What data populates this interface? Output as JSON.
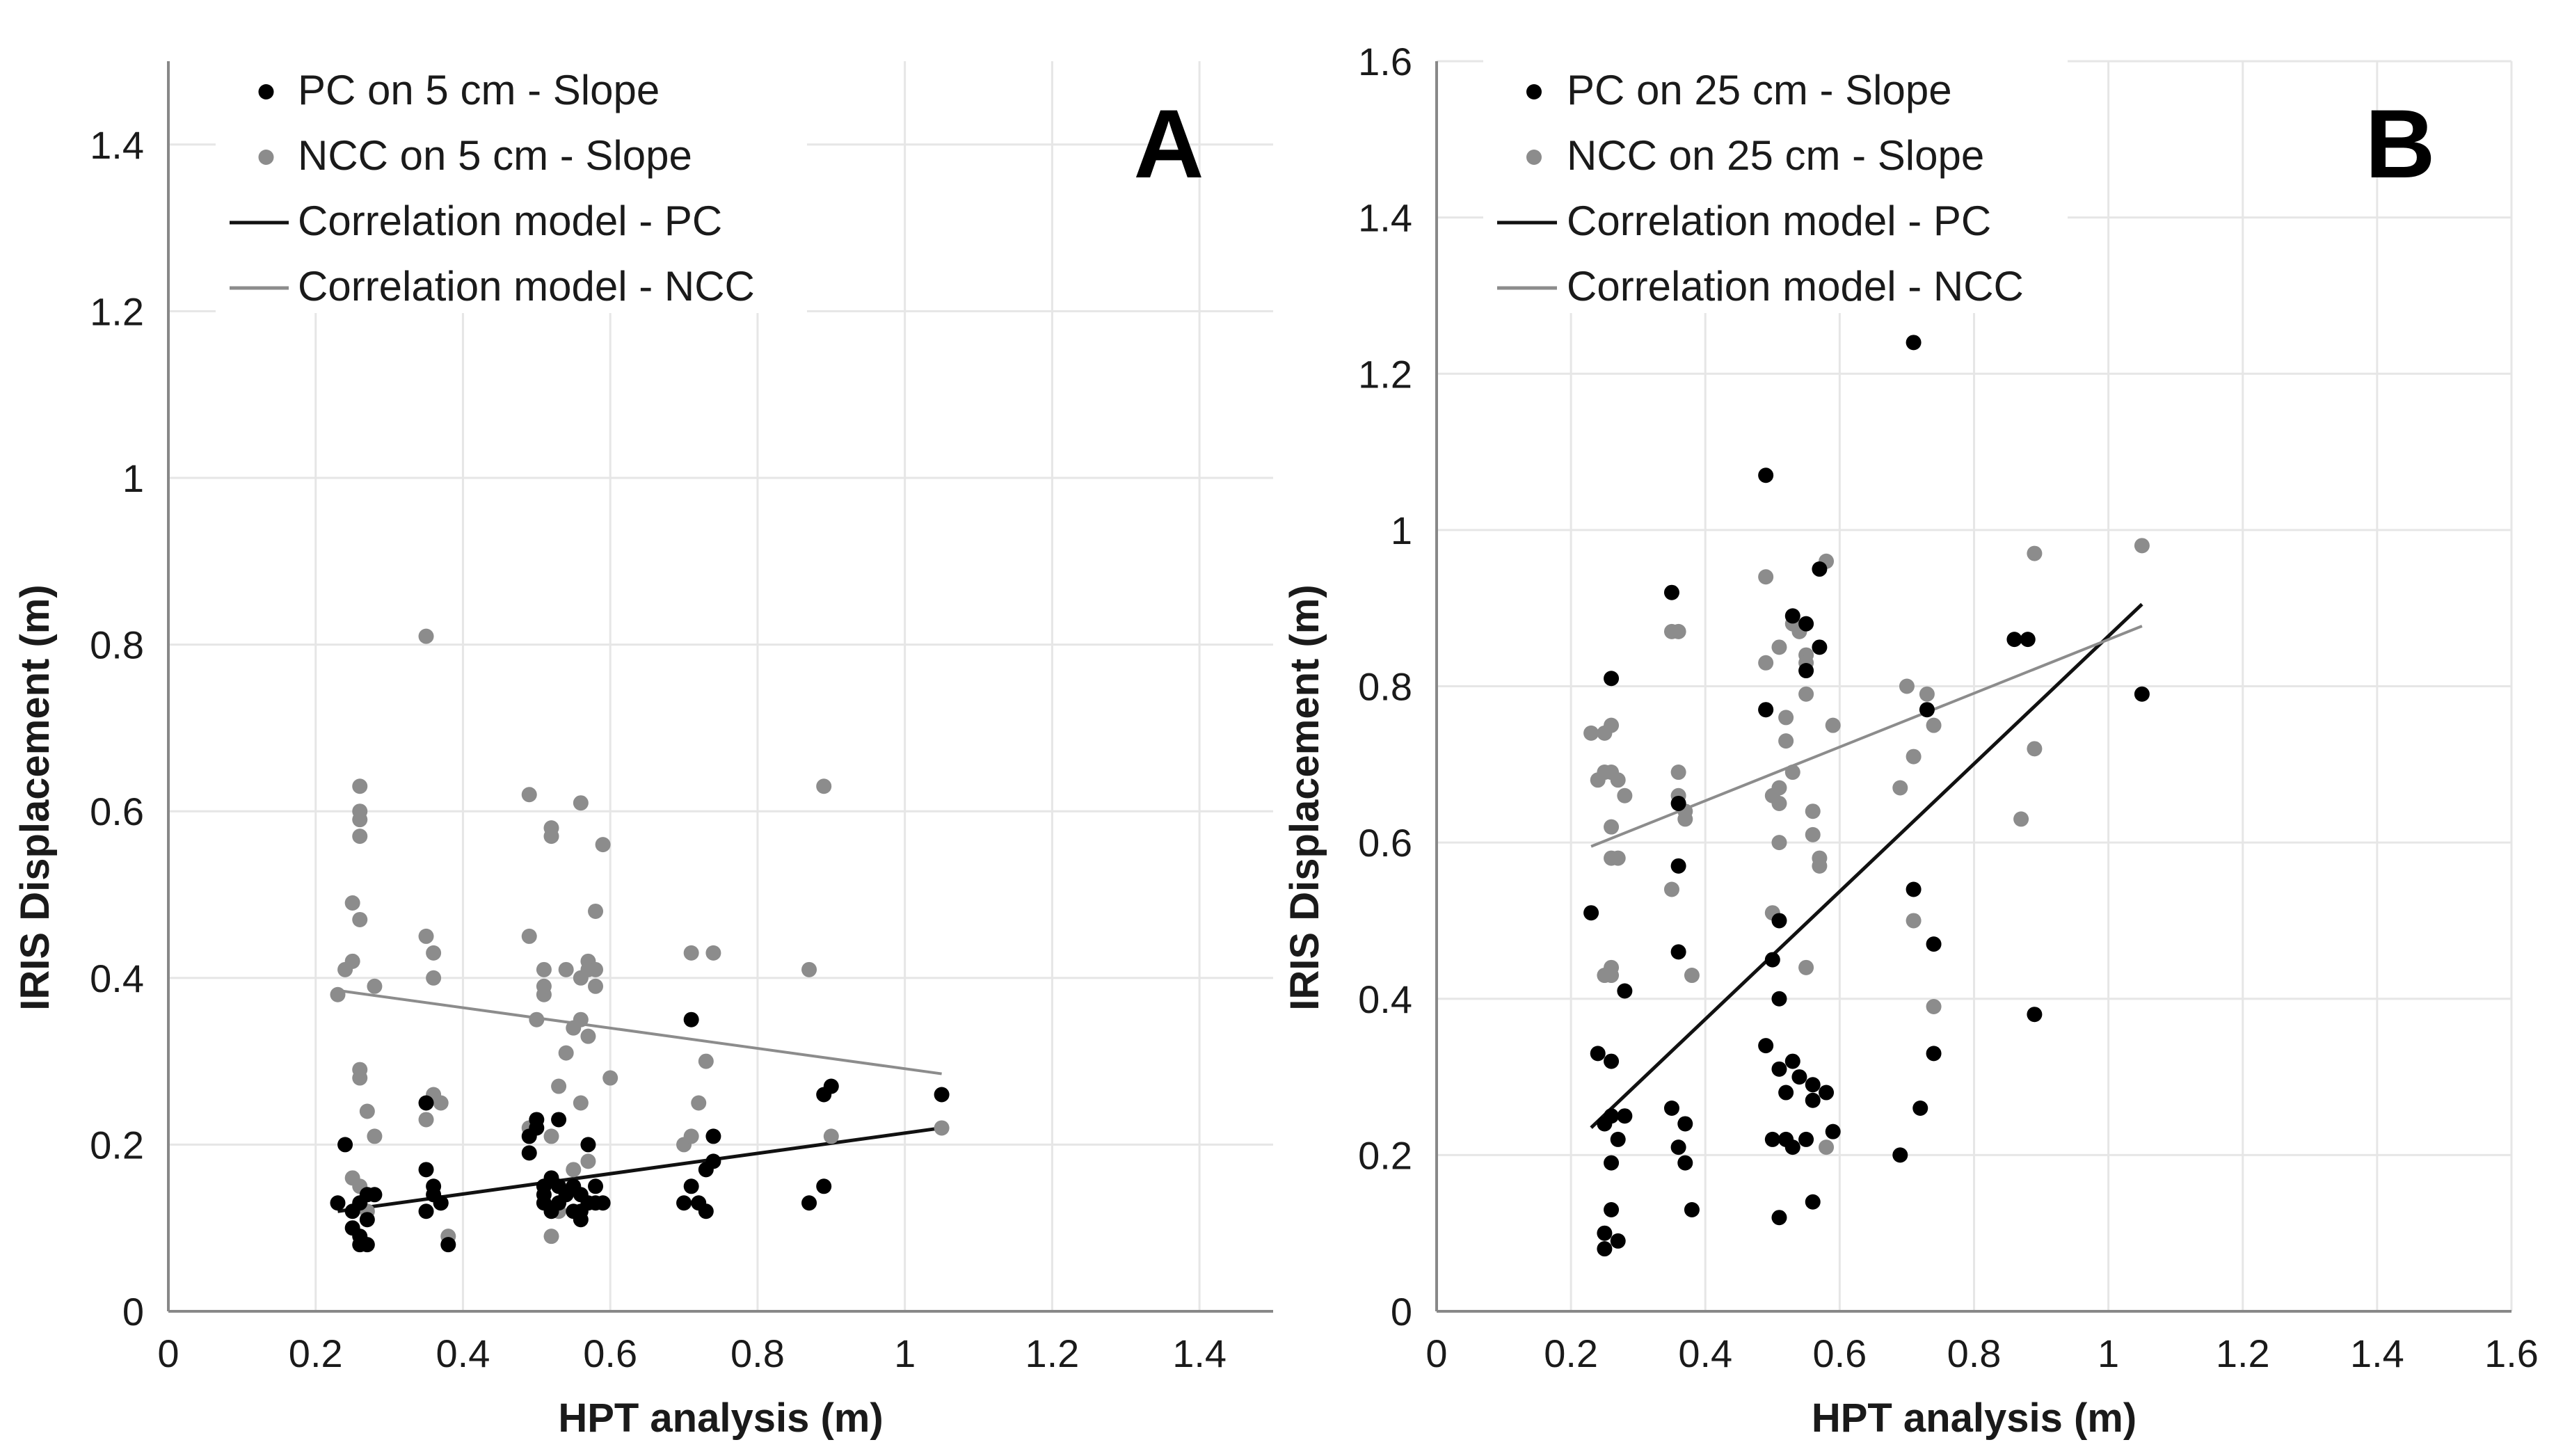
{
  "figure": {
    "colors": {
      "pc": "#000000",
      "ncc": "#8c8c8c",
      "pc_line": "#111111",
      "ncc_line": "#8c8c8c",
      "grid": "#e6e6e6",
      "axis": "#888888"
    }
  },
  "chart_data": [
    {
      "type": "scatter",
      "panel": "A",
      "xlabel": "HPT analysis (m)",
      "ylabel": "IRIS Displacement (m)",
      "xlim": [
        0,
        1.5
      ],
      "ylim": [
        0,
        1.5
      ],
      "xticks": [
        "0",
        "0.2",
        "0.4",
        "0.6",
        "0.8",
        "1",
        "1.2",
        "1.4"
      ],
      "yticks": [
        "0",
        "0.2",
        "0.4",
        "0.6",
        "0.8",
        "1",
        "1.2",
        "1.4"
      ],
      "xtick_values": [
        0,
        0.2,
        0.4,
        0.6,
        0.8,
        1.0,
        1.2,
        1.4
      ],
      "ytick_values": [
        0,
        0.2,
        0.4,
        0.6,
        0.8,
        1.0,
        1.2,
        1.4
      ],
      "legend_position": "top-left",
      "series": [
        {
          "name": "PC on 5 cm - Slope",
          "kind": "points",
          "color": "#000000",
          "points": [
            [
              0.23,
              0.13
            ],
            [
              0.24,
              0.2
            ],
            [
              0.25,
              0.12
            ],
            [
              0.25,
              0.1
            ],
            [
              0.26,
              0.13
            ],
            [
              0.26,
              0.09
            ],
            [
              0.26,
              0.08
            ],
            [
              0.27,
              0.14
            ],
            [
              0.27,
              0.11
            ],
            [
              0.27,
              0.08
            ],
            [
              0.28,
              0.14
            ],
            [
              0.35,
              0.25
            ],
            [
              0.35,
              0.17
            ],
            [
              0.35,
              0.12
            ],
            [
              0.36,
              0.14
            ],
            [
              0.36,
              0.15
            ],
            [
              0.37,
              0.13
            ],
            [
              0.37,
              0.13
            ],
            [
              0.38,
              0.08
            ],
            [
              0.49,
              0.21
            ],
            [
              0.49,
              0.19
            ],
            [
              0.5,
              0.23
            ],
            [
              0.5,
              0.22
            ],
            [
              0.51,
              0.15
            ],
            [
              0.51,
              0.14
            ],
            [
              0.51,
              0.13
            ],
            [
              0.52,
              0.16
            ],
            [
              0.52,
              0.12
            ],
            [
              0.53,
              0.23
            ],
            [
              0.53,
              0.15
            ],
            [
              0.53,
              0.13
            ],
            [
              0.54,
              0.14
            ],
            [
              0.55,
              0.15
            ],
            [
              0.55,
              0.12
            ],
            [
              0.56,
              0.14
            ],
            [
              0.56,
              0.12
            ],
            [
              0.56,
              0.11
            ],
            [
              0.57,
              0.2
            ],
            [
              0.57,
              0.13
            ],
            [
              0.58,
              0.13
            ],
            [
              0.58,
              0.15
            ],
            [
              0.59,
              0.13
            ],
            [
              0.7,
              0.13
            ],
            [
              0.71,
              0.35
            ],
            [
              0.71,
              0.15
            ],
            [
              0.72,
              0.13
            ],
            [
              0.73,
              0.12
            ],
            [
              0.73,
              0.17
            ],
            [
              0.74,
              0.21
            ],
            [
              0.74,
              0.18
            ],
            [
              0.87,
              0.13
            ],
            [
              0.89,
              0.26
            ],
            [
              0.89,
              0.15
            ],
            [
              0.9,
              0.27
            ],
            [
              1.05,
              0.26
            ]
          ]
        },
        {
          "name": "NCC on 5 cm - Slope",
          "kind": "points",
          "color": "#8c8c8c",
          "points": [
            [
              0.23,
              0.38
            ],
            [
              0.24,
              0.41
            ],
            [
              0.25,
              0.49
            ],
            [
              0.25,
              0.42
            ],
            [
              0.25,
              0.16
            ],
            [
              0.26,
              0.63
            ],
            [
              0.26,
              0.6
            ],
            [
              0.26,
              0.59
            ],
            [
              0.26,
              0.57
            ],
            [
              0.26,
              0.47
            ],
            [
              0.26,
              0.29
            ],
            [
              0.26,
              0.28
            ],
            [
              0.26,
              0.15
            ],
            [
              0.26,
              0.13
            ],
            [
              0.27,
              0.24
            ],
            [
              0.27,
              0.12
            ],
            [
              0.28,
              0.39
            ],
            [
              0.28,
              0.21
            ],
            [
              0.35,
              0.81
            ],
            [
              0.35,
              0.45
            ],
            [
              0.35,
              0.23
            ],
            [
              0.36,
              0.43
            ],
            [
              0.36,
              0.4
            ],
            [
              0.36,
              0.26
            ],
            [
              0.37,
              0.25
            ],
            [
              0.38,
              0.09
            ],
            [
              0.49,
              0.62
            ],
            [
              0.49,
              0.45
            ],
            [
              0.49,
              0.22
            ],
            [
              0.5,
              0.35
            ],
            [
              0.51,
              0.41
            ],
            [
              0.51,
              0.39
            ],
            [
              0.51,
              0.38
            ],
            [
              0.52,
              0.58
            ],
            [
              0.52,
              0.57
            ],
            [
              0.52,
              0.21
            ],
            [
              0.52,
              0.09
            ],
            [
              0.53,
              0.27
            ],
            [
              0.53,
              0.12
            ],
            [
              0.54,
              0.41
            ],
            [
              0.54,
              0.31
            ],
            [
              0.55,
              0.34
            ],
            [
              0.55,
              0.17
            ],
            [
              0.56,
              0.61
            ],
            [
              0.56,
              0.4
            ],
            [
              0.56,
              0.35
            ],
            [
              0.56,
              0.25
            ],
            [
              0.57,
              0.42
            ],
            [
              0.57,
              0.41
            ],
            [
              0.57,
              0.33
            ],
            [
              0.57,
              0.18
            ],
            [
              0.58,
              0.48
            ],
            [
              0.58,
              0.41
            ],
            [
              0.58,
              0.39
            ],
            [
              0.59,
              0.56
            ],
            [
              0.6,
              0.28
            ],
            [
              0.7,
              0.2
            ],
            [
              0.71,
              0.43
            ],
            [
              0.71,
              0.21
            ],
            [
              0.72,
              0.25
            ],
            [
              0.73,
              0.3
            ],
            [
              0.74,
              0.43
            ],
            [
              0.87,
              0.41
            ],
            [
              0.89,
              0.63
            ],
            [
              0.9,
              0.21
            ],
            [
              1.05,
              0.22
            ]
          ]
        },
        {
          "name": "Correlation model - PC",
          "kind": "line",
          "color": "#111111",
          "points": [
            [
              0.23,
              0.12
            ],
            [
              1.05,
              0.22
            ]
          ]
        },
        {
          "name": "Correlation model - NCC",
          "kind": "line",
          "color": "#8c8c8c",
          "points": [
            [
              0.23,
              0.385
            ],
            [
              1.05,
              0.285
            ]
          ]
        }
      ]
    },
    {
      "type": "scatter",
      "panel": "B",
      "xlabel": "HPT analysis (m)",
      "ylabel": "IRIS Displacement (m)",
      "xlim": [
        0,
        1.6
      ],
      "ylim": [
        0,
        1.6
      ],
      "xticks": [
        "0",
        "0.2",
        "0.4",
        "0.6",
        "0.8",
        "1",
        "1.2",
        "1.4",
        "1.6"
      ],
      "yticks": [
        "0",
        "0.2",
        "0.4",
        "0.6",
        "0.8",
        "1",
        "1.2",
        "1.4",
        "1.6"
      ],
      "xtick_values": [
        0,
        0.2,
        0.4,
        0.6,
        0.8,
        1.0,
        1.2,
        1.4,
        1.6
      ],
      "ytick_values": [
        0,
        0.2,
        0.4,
        0.6,
        0.8,
        1.0,
        1.2,
        1.4,
        1.6
      ],
      "legend_position": "top-left",
      "series": [
        {
          "name": "PC on 25 cm - Slope",
          "kind": "points",
          "color": "#000000",
          "points": [
            [
              0.23,
              0.51
            ],
            [
              0.24,
              0.33
            ],
            [
              0.25,
              0.24
            ],
            [
              0.25,
              0.1
            ],
            [
              0.25,
              0.08
            ],
            [
              0.26,
              0.81
            ],
            [
              0.26,
              0.32
            ],
            [
              0.26,
              0.25
            ],
            [
              0.26,
              0.19
            ],
            [
              0.26,
              0.13
            ],
            [
              0.27,
              0.22
            ],
            [
              0.27,
              0.09
            ],
            [
              0.28,
              0.41
            ],
            [
              0.28,
              0.25
            ],
            [
              0.35,
              0.92
            ],
            [
              0.35,
              0.26
            ],
            [
              0.36,
              0.65
            ],
            [
              0.36,
              0.57
            ],
            [
              0.36,
              0.46
            ],
            [
              0.36,
              0.21
            ],
            [
              0.37,
              0.24
            ],
            [
              0.37,
              0.19
            ],
            [
              0.38,
              0.13
            ],
            [
              0.49,
              1.07
            ],
            [
              0.49,
              0.77
            ],
            [
              0.49,
              0.34
            ],
            [
              0.5,
              0.45
            ],
            [
              0.5,
              0.22
            ],
            [
              0.51,
              0.5
            ],
            [
              0.51,
              0.4
            ],
            [
              0.51,
              0.31
            ],
            [
              0.51,
              0.12
            ],
            [
              0.52,
              0.28
            ],
            [
              0.52,
              0.22
            ],
            [
              0.53,
              0.89
            ],
            [
              0.53,
              0.32
            ],
            [
              0.53,
              0.21
            ],
            [
              0.54,
              0.3
            ],
            [
              0.55,
              0.88
            ],
            [
              0.55,
              0.82
            ],
            [
              0.55,
              0.22
            ],
            [
              0.56,
              0.29
            ],
            [
              0.56,
              0.27
            ],
            [
              0.56,
              0.14
            ],
            [
              0.57,
              0.95
            ],
            [
              0.57,
              0.85
            ],
            [
              0.58,
              0.28
            ],
            [
              0.59,
              0.23
            ],
            [
              0.69,
              0.2
            ],
            [
              0.71,
              1.24
            ],
            [
              0.71,
              0.54
            ],
            [
              0.72,
              0.26
            ],
            [
              0.73,
              0.77
            ],
            [
              0.74,
              0.47
            ],
            [
              0.74,
              0.33
            ],
            [
              0.86,
              0.86
            ],
            [
              0.88,
              0.86
            ],
            [
              0.89,
              0.38
            ],
            [
              1.05,
              0.79
            ]
          ]
        },
        {
          "name": "NCC on 25 cm - Slope",
          "kind": "points",
          "color": "#8c8c8c",
          "points": [
            [
              0.23,
              0.74
            ],
            [
              0.24,
              0.68
            ],
            [
              0.25,
              0.74
            ],
            [
              0.25,
              0.69
            ],
            [
              0.25,
              0.43
            ],
            [
              0.26,
              0.75
            ],
            [
              0.26,
              0.69
            ],
            [
              0.26,
              0.62
            ],
            [
              0.26,
              0.58
            ],
            [
              0.26,
              0.44
            ],
            [
              0.26,
              0.43
            ],
            [
              0.27,
              0.58
            ],
            [
              0.27,
              0.68
            ],
            [
              0.28,
              0.66
            ],
            [
              0.35,
              0.87
            ],
            [
              0.35,
              0.54
            ],
            [
              0.36,
              0.87
            ],
            [
              0.36,
              0.69
            ],
            [
              0.36,
              0.66
            ],
            [
              0.37,
              0.64
            ],
            [
              0.37,
              0.63
            ],
            [
              0.38,
              0.43
            ],
            [
              0.49,
              0.94
            ],
            [
              0.49,
              0.83
            ],
            [
              0.49,
              0.77
            ],
            [
              0.5,
              0.51
            ],
            [
              0.5,
              0.66
            ],
            [
              0.51,
              0.85
            ],
            [
              0.51,
              0.67
            ],
            [
              0.51,
              0.65
            ],
            [
              0.51,
              0.6
            ],
            [
              0.52,
              0.76
            ],
            [
              0.52,
              0.73
            ],
            [
              0.53,
              0.88
            ],
            [
              0.53,
              0.69
            ],
            [
              0.54,
              0.87
            ],
            [
              0.55,
              0.84
            ],
            [
              0.55,
              0.83
            ],
            [
              0.55,
              0.79
            ],
            [
              0.55,
              0.44
            ],
            [
              0.56,
              0.64
            ],
            [
              0.56,
              0.61
            ],
            [
              0.57,
              0.58
            ],
            [
              0.57,
              0.57
            ],
            [
              0.58,
              0.96
            ],
            [
              0.58,
              0.21
            ],
            [
              0.59,
              0.75
            ],
            [
              0.69,
              0.67
            ],
            [
              0.7,
              0.8
            ],
            [
              0.71,
              0.71
            ],
            [
              0.71,
              0.5
            ],
            [
              0.73,
              0.79
            ],
            [
              0.74,
              0.75
            ],
            [
              0.74,
              0.39
            ],
            [
              0.87,
              0.63
            ],
            [
              0.89,
              0.97
            ],
            [
              0.89,
              0.72
            ],
            [
              1.05,
              0.98
            ]
          ]
        },
        {
          "name": "Correlation model - PC",
          "kind": "line",
          "color": "#111111",
          "points": [
            [
              0.23,
              0.235
            ],
            [
              1.05,
              0.905
            ]
          ]
        },
        {
          "name": "Correlation model - NCC",
          "kind": "line",
          "color": "#8c8c8c",
          "points": [
            [
              0.23,
              0.595
            ],
            [
              1.05,
              0.877
            ]
          ]
        }
      ],
      "letter": "B"
    }
  ]
}
